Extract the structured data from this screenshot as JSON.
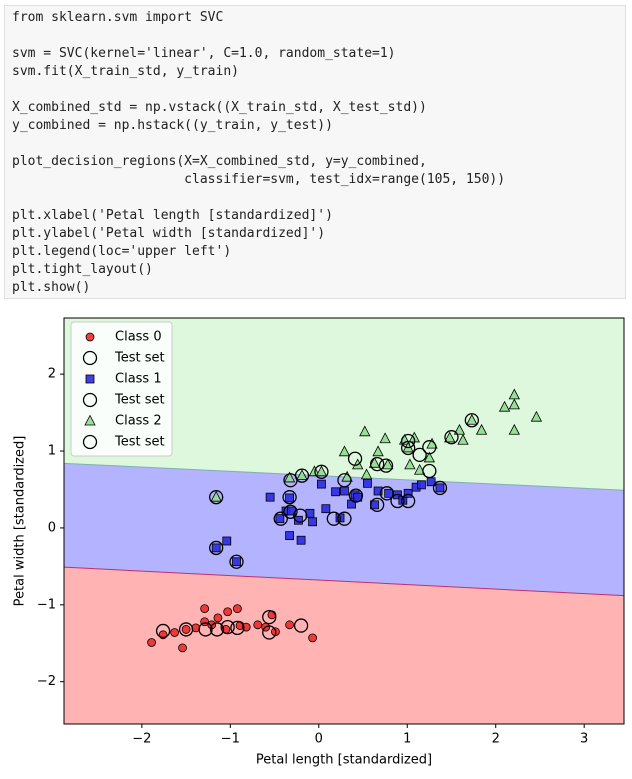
{
  "code_cell": {
    "blocks": [
      [
        "from sklearn.svm import SVC"
      ],
      [
        "svm = SVC(kernel='linear', C=1.0, random_state=1)",
        "svm.fit(X_train_std, y_train)"
      ],
      [
        "X_combined_std = np.vstack((X_train_std, X_test_std))",
        "y_combined = np.hstack((y_train, y_test))"
      ],
      [
        "plot_decision_regions(X=X_combined_std, y=y_combined,",
        "                      classifier=svm, test_idx=range(105, 150))"
      ],
      [
        "plt.xlabel('Petal length [standardized]')",
        "plt.ylabel('Petal width [standardized]')",
        "plt.legend(loc='upper left')",
        "plt.tight_layout()",
        "plt.show()"
      ]
    ]
  },
  "chart_data": {
    "type": "scatter",
    "x_label": "Petal length [standardized]",
    "y_label": "Petal width [standardized]",
    "xlim": [
      -2.88,
      3.45
    ],
    "ylim": [
      -2.55,
      2.73
    ],
    "xticks": [
      {
        "value": -2,
        "label": "−2"
      },
      {
        "value": -1,
        "label": "−1"
      },
      0,
      1,
      2,
      3
    ],
    "yticks": [
      {
        "value": -2,
        "label": "−2"
      },
      {
        "value": -1,
        "label": "−1"
      },
      0,
      1,
      2
    ],
    "legend": "upper left",
    "regions": [
      "#ffb3b3",
      "#b3b3ff",
      "#ddf8dd"
    ],
    "boundaries": [
      {
        "x": [
          -2.88,
          3.45
        ],
        "y": [
          -0.51,
          -0.88
        ],
        "color": "#c0306a"
      },
      {
        "x": [
          -2.88,
          3.45
        ],
        "y": [
          0.84,
          0.49
        ],
        "color": "#7fb0b0"
      }
    ],
    "series": [
      {
        "name": "Class 0",
        "marker": "o",
        "color": "#ee2a2a",
        "x": [
          -1.89,
          -1.76,
          -1.63,
          -1.54,
          -1.5,
          -1.39,
          -1.29,
          -1.29,
          -1.21,
          -1.14,
          -1.05,
          -1.03,
          -0.92,
          -0.89,
          -0.82,
          -0.69,
          -0.6,
          -0.53,
          -0.49,
          -0.33,
          -0.07
        ],
        "y": [
          -1.49,
          -1.39,
          -1.36,
          -1.56,
          -1.32,
          -1.3,
          -1.22,
          -1.05,
          -1.26,
          -1.17,
          -1.32,
          -1.09,
          -1.05,
          -1.27,
          -1.29,
          -1.26,
          -1.29,
          -1.13,
          -1.35,
          -1.26,
          -1.43
        ]
      },
      {
        "name": "Test set",
        "marker": "o",
        "color": "none",
        "x": [
          -1.76,
          -1.5,
          -1.28,
          -1.15,
          -1.03,
          -0.92,
          -0.56,
          -0.56,
          -0.2
        ],
        "y": [
          -1.34,
          -1.32,
          -1.32,
          -1.32,
          -1.29,
          -1.3,
          -1.16,
          -1.36,
          -1.27
        ]
      },
      {
        "name": "Class 1",
        "marker": "s",
        "color": "#2a2ae0",
        "x": [
          -1.16,
          -1.04,
          -0.93,
          -0.55,
          -0.44,
          -0.37,
          -0.33,
          -0.33,
          -0.31,
          -0.23,
          -0.2,
          -0.1,
          -0.07,
          0.03,
          0.08,
          0.19,
          0.24,
          0.29,
          0.37,
          0.41,
          0.44,
          0.55,
          0.63,
          0.67,
          0.79,
          0.89,
          0.95,
          1.01,
          1.1,
          1.16,
          1.27,
          1.37
        ],
        "y": [
          -0.26,
          -0.17,
          -0.44,
          0.4,
          0.12,
          0.22,
          0.39,
          -0.1,
          0.22,
          0.1,
          -0.16,
          0.19,
          0.08,
          0.57,
          0.25,
          0.47,
          0.13,
          0.48,
          0.31,
          0.43,
          0.4,
          0.58,
          0.3,
          0.48,
          0.45,
          0.43,
          0.36,
          0.45,
          0.53,
          0.56,
          0.6,
          0.52
        ]
      },
      {
        "name": "Test set",
        "marker": "o",
        "color": "none",
        "x": [
          -1.16,
          -0.93,
          -0.43,
          -0.33,
          -0.32,
          -0.21,
          0.17,
          0.29,
          0.42,
          0.66,
          0.77,
          0.89,
          1.01,
          1.37
        ],
        "y": [
          -0.26,
          -0.44,
          0.12,
          0.4,
          0.21,
          0.16,
          0.12,
          0.12,
          0.42,
          0.3,
          0.45,
          0.35,
          0.35,
          0.52
        ]
      },
      {
        "name": "Class 2",
        "marker": "^",
        "color": "#8fdc8f",
        "x": [
          -1.16,
          -0.33,
          -0.19,
          -0.05,
          0.03,
          0.29,
          0.32,
          0.44,
          0.52,
          0.54,
          0.63,
          0.67,
          0.75,
          0.78,
          0.97,
          1.01,
          1.03,
          1.08,
          1.14,
          1.25,
          1.28,
          1.48,
          1.59,
          1.63,
          1.73,
          1.84,
          2.1,
          2.21,
          2.21,
          2.21,
          2.46
        ],
        "y": [
          0.4,
          0.65,
          0.68,
          0.73,
          0.73,
          0.99,
          0.66,
          0.82,
          1.25,
          0.69,
          0.84,
          0.99,
          1.16,
          0.82,
          1.14,
          1.04,
          0.82,
          1.17,
          0.75,
          0.91,
          1.09,
          1.17,
          1.27,
          1.14,
          1.4,
          1.27,
          1.57,
          1.73,
          1.6,
          1.27,
          1.44
        ]
      },
      {
        "name": "Test set",
        "marker": "o",
        "color": "none",
        "x": [
          -1.16,
          -0.32,
          -0.19,
          0.03,
          0.29,
          0.41,
          0.66,
          0.76,
          1.01,
          1.01,
          1.14,
          1.25,
          1.25,
          1.5,
          1.73
        ],
        "y": [
          0.4,
          0.62,
          0.68,
          0.73,
          0.62,
          0.9,
          0.83,
          0.81,
          1.13,
          1.04,
          0.95,
          1.05,
          0.74,
          1.18,
          1.4
        ]
      }
    ]
  }
}
